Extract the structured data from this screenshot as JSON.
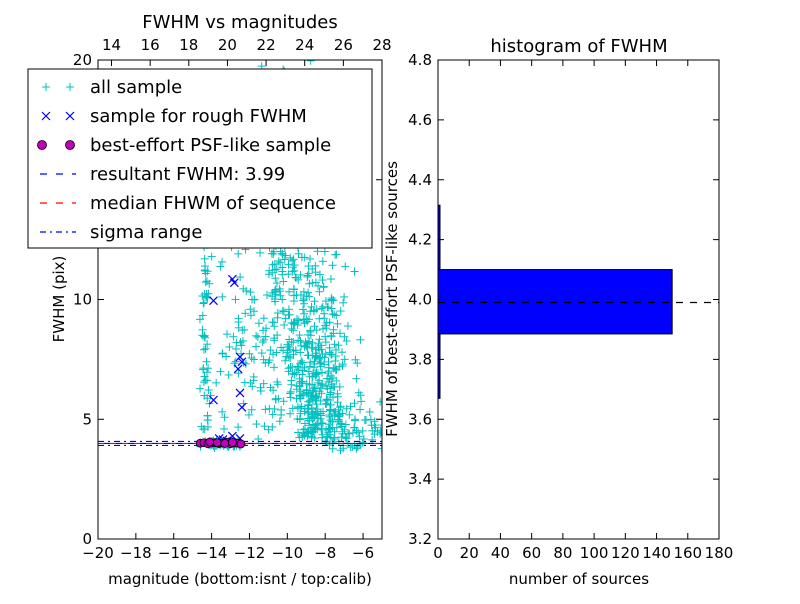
{
  "chart_data": [
    {
      "type": "scatter",
      "title": "FWHM vs magnitudes",
      "xlabel": "magnitude (bottom:isnt / top:calib)",
      "ylabel": "FWHM (pix)",
      "xlim": [
        -20,
        -5
      ],
      "ylim": [
        0,
        20
      ],
      "x2lim": [
        13.3,
        28
      ],
      "xticks": [
        -20,
        -18,
        -16,
        -14,
        -12,
        -10,
        -8,
        -6
      ],
      "xtick_labels": [
        "−20",
        "−18",
        "−16",
        "−14",
        "−12",
        "−10",
        "−8",
        "−6"
      ],
      "x2ticks": [
        14,
        16,
        18,
        20,
        22,
        24,
        26,
        28
      ],
      "x2tick_labels": [
        "14",
        "16",
        "18",
        "20",
        "22",
        "24",
        "26",
        "28"
      ],
      "yticks": [
        0,
        5,
        10,
        15,
        20
      ],
      "ytick_labels": [
        "0",
        "5",
        "10",
        "15",
        "20"
      ],
      "grid": false,
      "legend_position": "top",
      "legend": [
        {
          "label": "all sample",
          "marker": "plus",
          "color": "#00bfbf"
        },
        {
          "label": "sample for rough FWHM",
          "marker": "x",
          "color": "#0000ff"
        },
        {
          "label": "best-effort PSF-like sample",
          "marker": "circle",
          "color": "#bf00bf"
        },
        {
          "label": "resultant FWHM: 3.99",
          "marker": "dashed",
          "color": "#0000ff"
        },
        {
          "label": "median FHWM of sequence",
          "marker": "dashed",
          "color": "#ff0000"
        },
        {
          "label": "sigma range",
          "marker": "dashdot",
          "color": "#0000ff"
        }
      ],
      "series": [
        {
          "name": "sample for rough FWHM",
          "x": [
            -13.9,
            -12.9,
            -12.8,
            -12.5,
            -12.4,
            -12.6,
            -13.9,
            -12.5,
            -12.4,
            -13.6,
            -13.2,
            -12.9,
            -12.7,
            -13.4,
            -12.5
          ],
          "y": [
            9.95,
            10.85,
            10.7,
            7.6,
            7.4,
            7.1,
            5.8,
            6.1,
            5.5,
            4.2,
            4.1,
            4.3,
            4.05,
            4.15,
            4.2
          ]
        },
        {
          "name": "best-effort PSF-like sample",
          "x": [
            -14.6,
            -14.4,
            -14.2,
            -14.0,
            -13.8,
            -13.6,
            -13.4,
            -13.2,
            -13.0,
            -12.8,
            -12.6,
            -12.45,
            -14.1,
            -13.7,
            -13.3,
            -12.9
          ],
          "y": [
            4.0,
            4.02,
            3.98,
            4.01,
            4.03,
            3.99,
            4.0,
            4.04,
            3.98,
            4.01,
            4.0,
            3.97,
            4.05,
            4.02,
            3.99,
            4.03
          ]
        }
      ],
      "lines": [
        {
          "name": "resultant FWHM: 3.99",
          "y": 3.99,
          "style": "dashed",
          "color": "#0000ff"
        },
        {
          "name": "median FHWM of sequence",
          "y": 3.99,
          "style": "dashed",
          "color": "#ff0000"
        },
        {
          "name": "sigma range",
          "y": 3.99,
          "style": "dashdot",
          "color": "#0000ff"
        }
      ]
    },
    {
      "type": "bar",
      "orientation": "horizontal",
      "title": "histogram of FWHM",
      "xlabel": "number of sources",
      "ylabel": "FWHM of best-effort PSF-like sources",
      "xlim": [
        0,
        180
      ],
      "ylim": [
        3.2,
        4.8
      ],
      "xticks": [
        0,
        20,
        40,
        60,
        80,
        100,
        120,
        140,
        160,
        180
      ],
      "xtick_labels": [
        "0",
        "20",
        "40",
        "60",
        "80",
        "100",
        "120",
        "140",
        "160",
        "180"
      ],
      "yticks": [
        3.2,
        3.4,
        3.6,
        3.8,
        4.0,
        4.2,
        4.4,
        4.6,
        4.8
      ],
      "ytick_labels": [
        "3.2",
        "3.4",
        "3.6",
        "3.8",
        "4.0",
        "4.2",
        "4.4",
        "4.6",
        "4.8"
      ],
      "bars": [
        {
          "y0": 3.885,
          "y1": 4.1,
          "count": 150
        },
        {
          "y0": 3.67,
          "y1": 3.885,
          "count": 1
        },
        {
          "y0": 4.1,
          "y1": 4.315,
          "count": 1
        }
      ],
      "hline": {
        "y": 3.99,
        "style": "dashed",
        "color": "#000000"
      },
      "bar_color": "#0000ff"
    }
  ]
}
